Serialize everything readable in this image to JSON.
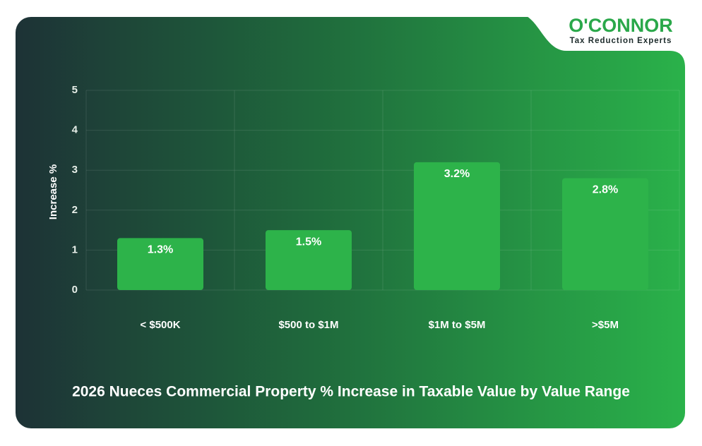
{
  "brand": {
    "name": "O'CONNOR",
    "tagline": "Tax Reduction Experts"
  },
  "chart_data": {
    "type": "bar",
    "title": "2026 Nueces Commercial Property % Increase in Taxable Value by Value Range",
    "y_label": "Increase %",
    "categories": [
      "< $500K",
      "$500 to $1M",
      "$1M to $5M",
      ">$5M"
    ],
    "values": [
      1.3,
      1.5,
      3.2,
      2.8
    ],
    "value_labels": [
      "1.3%",
      "1.5%",
      "3.2%",
      "2.8%"
    ],
    "color": "#2db34a",
    "ylim": [
      0,
      5
    ],
    "yticks": [
      0,
      1,
      2,
      3,
      4,
      5
    ],
    "grid": true
  }
}
